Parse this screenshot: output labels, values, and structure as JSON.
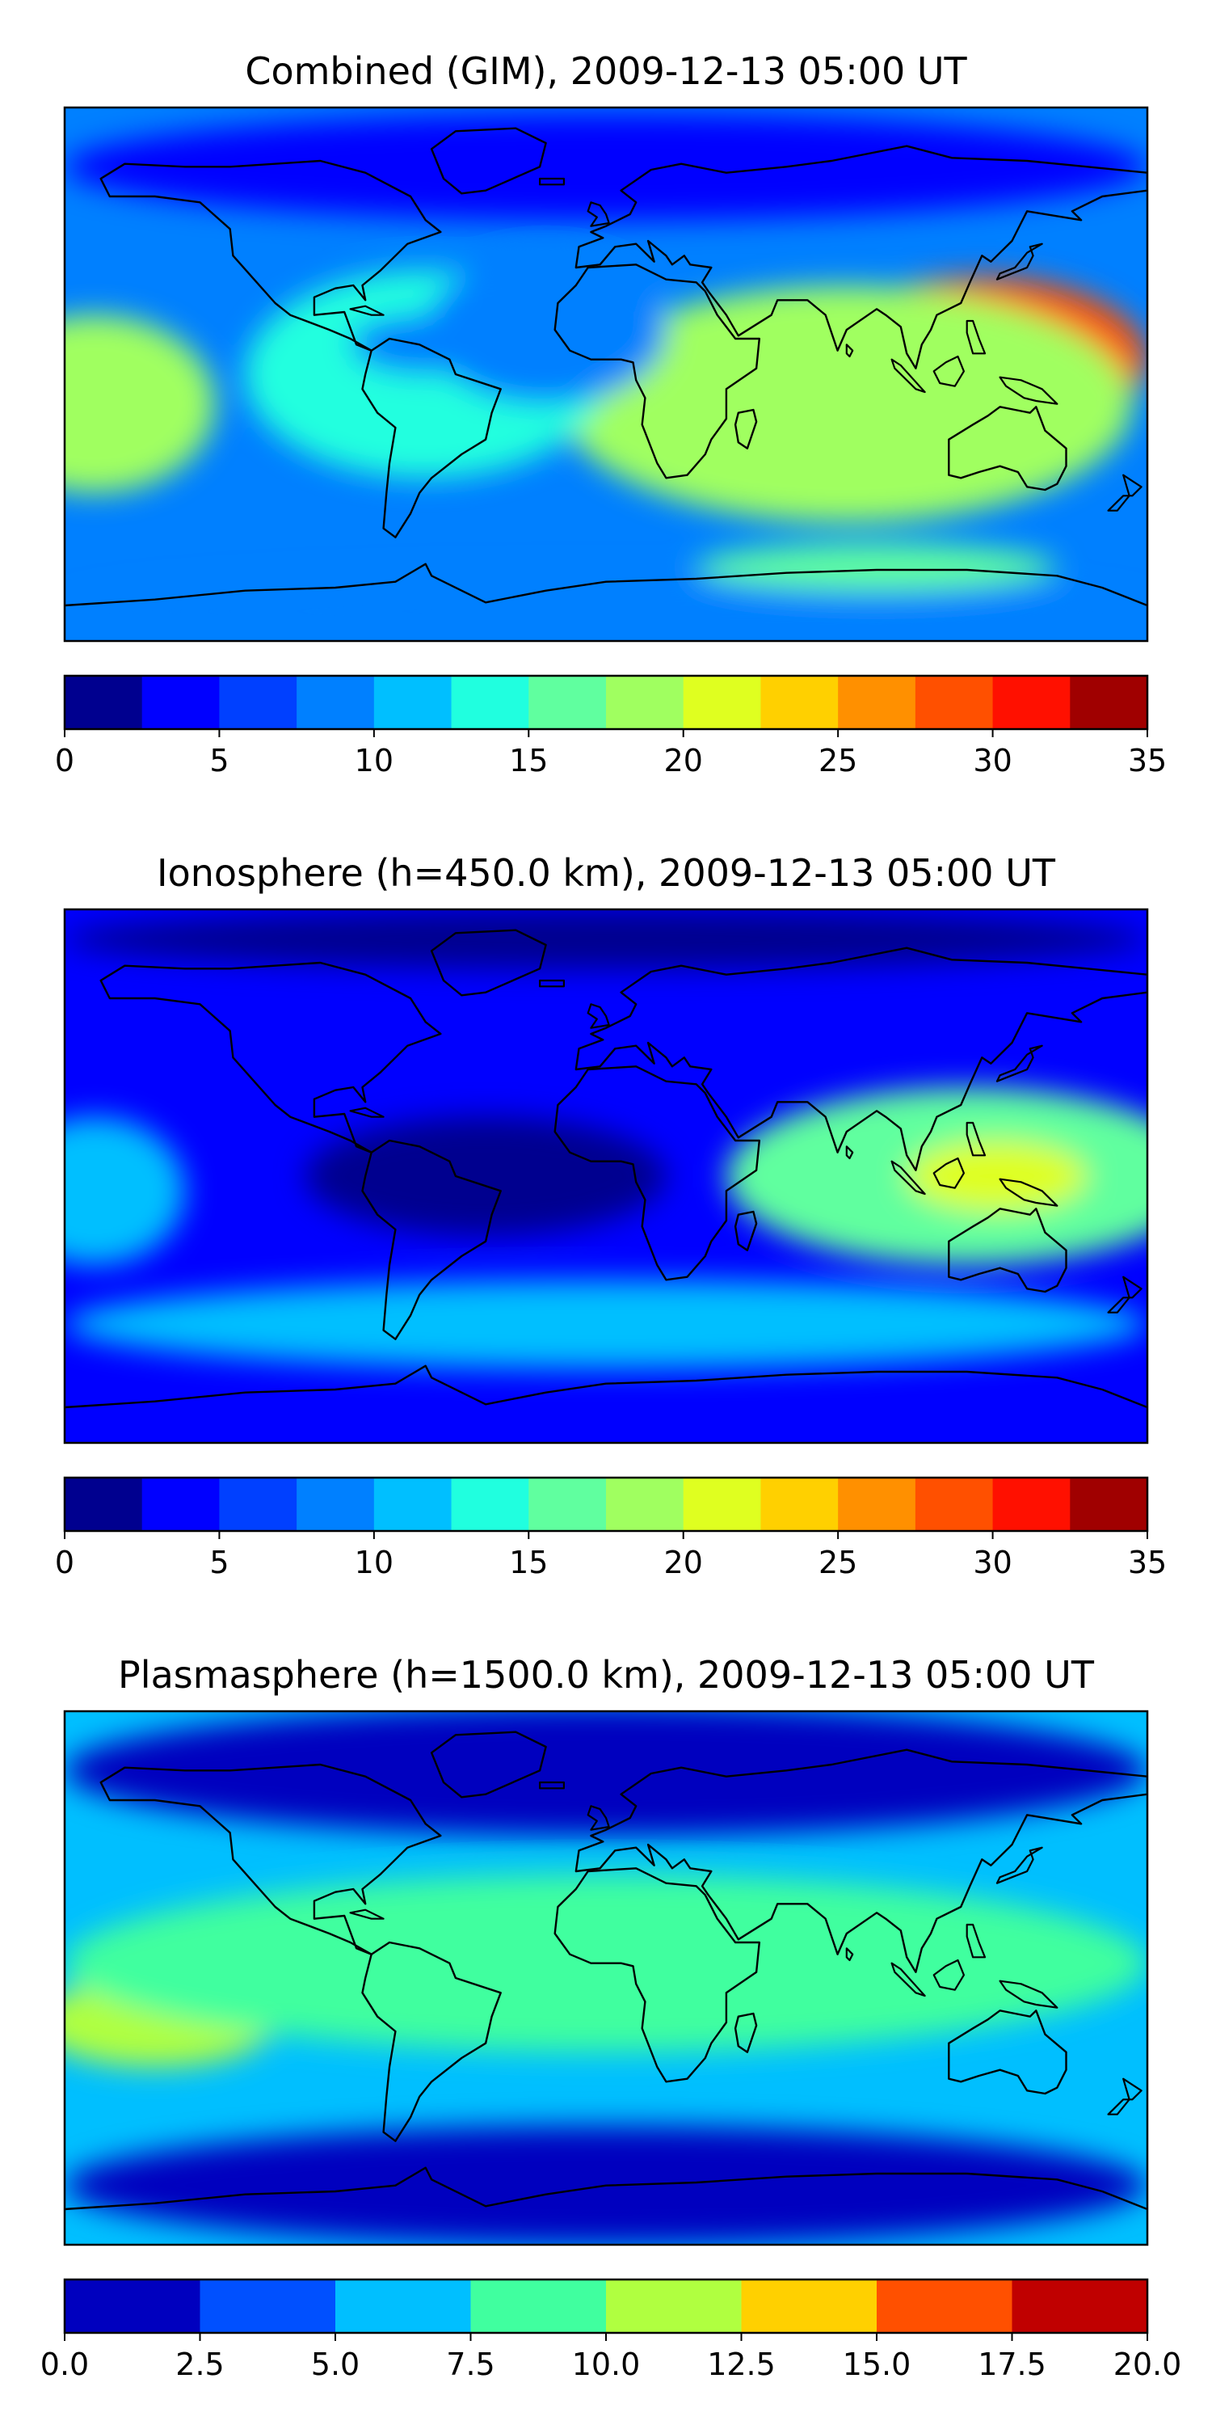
{
  "chart_data": [
    {
      "type": "heatmap",
      "title": "Combined (GIM), 2009-12-13 05:00 UT",
      "levels": [
        0,
        2.5,
        5,
        7.5,
        10,
        12.5,
        15,
        17.5,
        20,
        22.5,
        25,
        27.5,
        30,
        32.5,
        35
      ],
      "tick_values": [
        0,
        5,
        10,
        15,
        20,
        25,
        30,
        35
      ],
      "tick_labels": [
        "0",
        "5",
        "10",
        "15",
        "20",
        "25",
        "30",
        "35"
      ],
      "colors": [
        "#00008f",
        "#0000ff",
        "#0040ff",
        "#0080ff",
        "#00bfff",
        "#20ffdf",
        "#60ff9f",
        "#a0ff60",
        "#dfff20",
        "#ffd000",
        "#ff9000",
        "#ff5000",
        "#ff1000",
        "#a00000"
      ],
      "background_level": 3,
      "blobs": [
        {
          "lon": 125,
          "lat": 5,
          "rx": 55,
          "ry": 28,
          "level": 11
        },
        {
          "lon": 120,
          "lat": 5,
          "rx": 30,
          "ry": 14,
          "level": 12
        },
        {
          "lon": 80,
          "lat": -10,
          "rx": 95,
          "ry": 40,
          "level": 7
        },
        {
          "lon": -170,
          "lat": -10,
          "rx": 40,
          "ry": 30,
          "level": 7
        },
        {
          "lon": -60,
          "lat": 0,
          "rx": 60,
          "ry": 35,
          "level": 5
        },
        {
          "lon": -20,
          "lat": 15,
          "rx": 40,
          "ry": 25,
          "level": 3
        },
        {
          "lon": -60,
          "lat": 10,
          "rx": 25,
          "ry": 10,
          "level": 3
        },
        {
          "lon": 0,
          "lat": 70,
          "rx": 180,
          "ry": 18,
          "level": 1
        },
        {
          "lon": 0,
          "lat": -80,
          "rx": 180,
          "ry": 12,
          "level": 3
        },
        {
          "lon": 90,
          "lat": -65,
          "rx": 60,
          "ry": 8,
          "level": 6
        }
      ]
    },
    {
      "type": "heatmap",
      "title": "Ionosphere  (h=450.0 km), 2009-12-13 05:00 UT",
      "levels": [
        0,
        2.5,
        5,
        7.5,
        10,
        12.5,
        15,
        17.5,
        20,
        22.5,
        25,
        27.5,
        30,
        32.5,
        35
      ],
      "tick_values": [
        0,
        5,
        10,
        15,
        20,
        25,
        30,
        35
      ],
      "tick_labels": [
        "0",
        "5",
        "10",
        "15",
        "20",
        "25",
        "30",
        "35"
      ],
      "colors": [
        "#00008f",
        "#0000ff",
        "#0040ff",
        "#0080ff",
        "#00bfff",
        "#20ffdf",
        "#60ff9f",
        "#a0ff60",
        "#dfff20",
        "#ffd000",
        "#ff9000",
        "#ff5000",
        "#ff1000",
        "#a00000"
      ],
      "background_level": 1,
      "blobs": [
        {
          "lon": 120,
          "lat": 0,
          "rx": 80,
          "ry": 30,
          "level": 6
        },
        {
          "lon": 130,
          "lat": 0,
          "rx": 30,
          "ry": 12,
          "level": 8
        },
        {
          "lon": -170,
          "lat": -5,
          "rx": 30,
          "ry": 25,
          "level": 4
        },
        {
          "lon": 0,
          "lat": -50,
          "rx": 180,
          "ry": 15,
          "level": 4
        },
        {
          "lon": -40,
          "lat": 0,
          "rx": 60,
          "ry": 20,
          "level": 0
        },
        {
          "lon": 0,
          "lat": 80,
          "rx": 180,
          "ry": 10,
          "level": 0
        }
      ]
    },
    {
      "type": "heatmap",
      "title": "Plasmasphere (h=1500.0 km), 2009-12-13 05:00 UT",
      "levels": [
        0.0,
        2.5,
        5.0,
        7.5,
        10.0,
        12.5,
        15.0,
        17.5,
        20.0
      ],
      "tick_values": [
        0.0,
        2.5,
        5.0,
        7.5,
        10.0,
        12.5,
        15.0,
        17.5,
        20.0
      ],
      "tick_labels": [
        "0.0",
        "2.5",
        "5.0",
        "7.5",
        "10.0",
        "12.5",
        "15.0",
        "17.5",
        "20.0"
      ],
      "colors": [
        "#0000bf",
        "#0050ff",
        "#00bfff",
        "#40ff9f",
        "#b0ff40",
        "#ffd000",
        "#ff5000",
        "#c00000"
      ],
      "background_level": 2,
      "blobs": [
        {
          "lon": -150,
          "lat": -15,
          "rx": 40,
          "ry": 15,
          "level": 4
        },
        {
          "lon": 110,
          "lat": 0,
          "rx": 50,
          "ry": 15,
          "level": 4
        },
        {
          "lon": 0,
          "lat": 5,
          "rx": 180,
          "ry": 30,
          "level": 3
        },
        {
          "lon": 0,
          "lat": 70,
          "rx": 180,
          "ry": 22,
          "level": 0
        },
        {
          "lon": 0,
          "lat": -70,
          "rx": 180,
          "ry": 20,
          "level": 0
        }
      ]
    }
  ]
}
